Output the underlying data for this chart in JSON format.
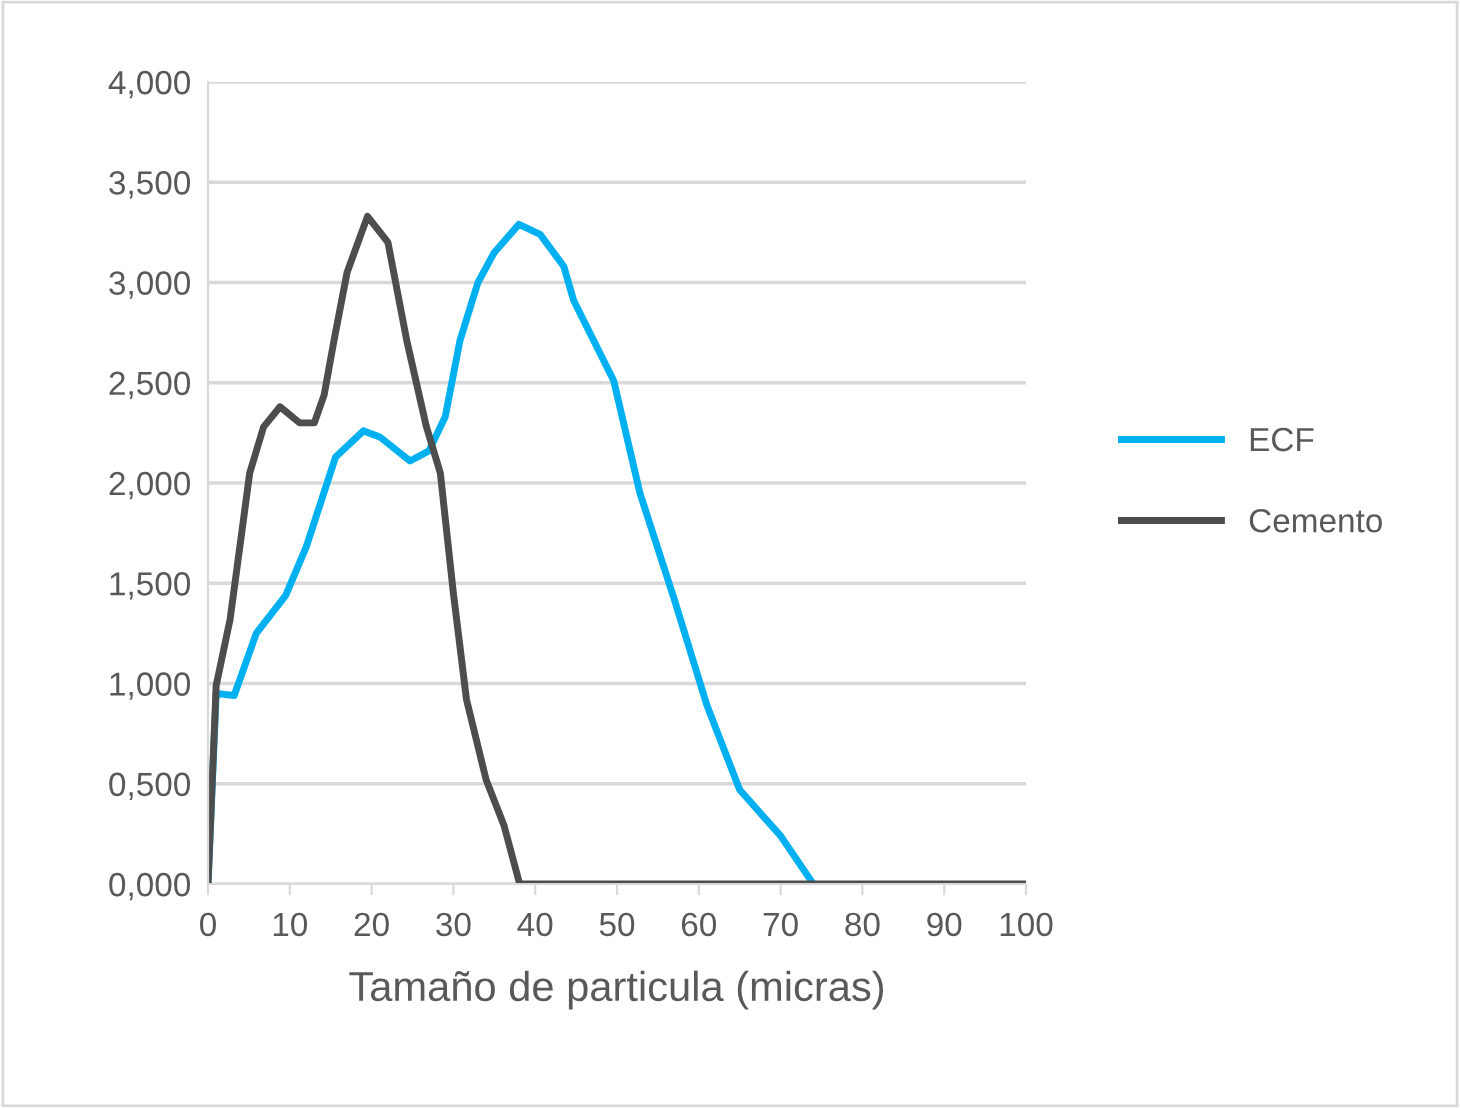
{
  "chart_data": {
    "type": "line",
    "xlabel": "Tamaño de particula (micras)",
    "xlim": [
      0,
      100
    ],
    "xticks": [
      0,
      10,
      20,
      30,
      40,
      50,
      60,
      70,
      80,
      90,
      100
    ],
    "ylim": [
      0,
      4
    ],
    "yticks": [
      {
        "value": 0,
        "label": "0,000"
      },
      {
        "value": 0.5,
        "label": "0,500"
      },
      {
        "value": 1,
        "label": "1,000"
      },
      {
        "value": 1.5,
        "label": "1,500"
      },
      {
        "value": 2,
        "label": "2,000"
      },
      {
        "value": 2.5,
        "label": "2,500"
      },
      {
        "value": 3,
        "label": "3,000"
      },
      {
        "value": 3.5,
        "label": "3,500"
      },
      {
        "value": 4,
        "label": "4,000"
      }
    ],
    "grid": "y",
    "legend": "right",
    "marker": "none",
    "line_style": "solid",
    "series": [
      {
        "name": "ECF",
        "color": "#00b0f0",
        "x": [
          0,
          1,
          3.2,
          5.9,
          9.5,
          12,
          15.6,
          19,
          21,
          24.7,
          27,
          29,
          30.8,
          33,
          35,
          38,
          40.6,
          43.5,
          44.7,
          49.6,
          52.8,
          57,
          61,
          65,
          70,
          74
        ],
        "values": [
          0,
          0.95,
          0.94,
          1.25,
          1.44,
          1.68,
          2.13,
          2.26,
          2.23,
          2.11,
          2.16,
          2.33,
          2.71,
          3.0,
          3.15,
          3.29,
          3.24,
          3.08,
          2.91,
          2.51,
          1.95,
          1.42,
          0.89,
          0.47,
          0.24,
          0
        ]
      },
      {
        "name": "Cemento",
        "color": "#4d4d4d",
        "x": [
          0,
          1,
          2.7,
          5.1,
          6.8,
          8.8,
          11.2,
          13,
          14.2,
          15.4,
          17,
          19.5,
          22,
          24.3,
          26.7,
          28.4,
          30,
          31.6,
          34,
          36.2,
          38.1,
          50,
          70,
          100
        ],
        "values": [
          0,
          0.99,
          1.32,
          2.05,
          2.28,
          2.38,
          2.3,
          2.3,
          2.44,
          2.71,
          3.05,
          3.33,
          3.2,
          2.71,
          2.28,
          2.05,
          1.45,
          0.92,
          0.52,
          0.29,
          0,
          0,
          0,
          0
        ]
      }
    ]
  }
}
